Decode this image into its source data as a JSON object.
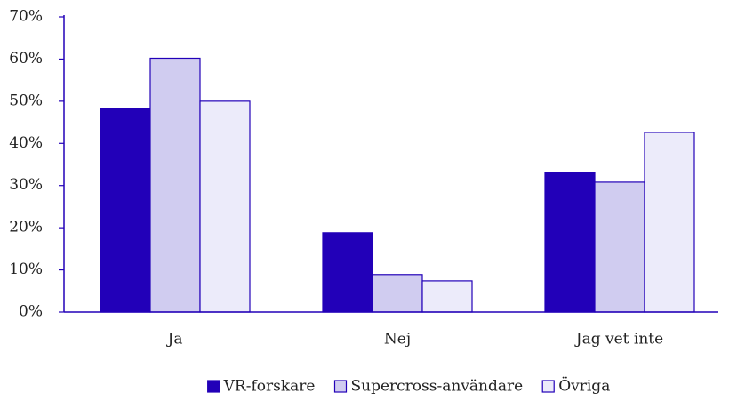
{
  "chart_data": {
    "type": "bar",
    "categories": [
      "Ja",
      "Nej",
      "Jag vet inte"
    ],
    "series": [
      {
        "name": "VR-forskare",
        "color": "#2200b8",
        "values": [
          48.2,
          18.8,
          33
        ]
      },
      {
        "name": "Supercross-användare",
        "color": "#d0ccf0",
        "values": [
          60.2,
          8.9,
          30.8
        ]
      },
      {
        "name": "Övriga",
        "color": "#ecebfa",
        "values": [
          50,
          7.4,
          42.6
        ]
      }
    ],
    "ylim": [
      0,
      70
    ],
    "yticks": [
      {
        "value": 0,
        "label": "0%"
      },
      {
        "value": 10,
        "label": "10%"
      },
      {
        "value": 20,
        "label": "20%"
      },
      {
        "value": 30,
        "label": "30%"
      },
      {
        "value": 40,
        "label": "40%"
      },
      {
        "value": 50,
        "label": "50%"
      },
      {
        "value": 60,
        "label": "60%"
      },
      {
        "value": 70,
        "label": "70%"
      }
    ],
    "legend": "bottom"
  }
}
